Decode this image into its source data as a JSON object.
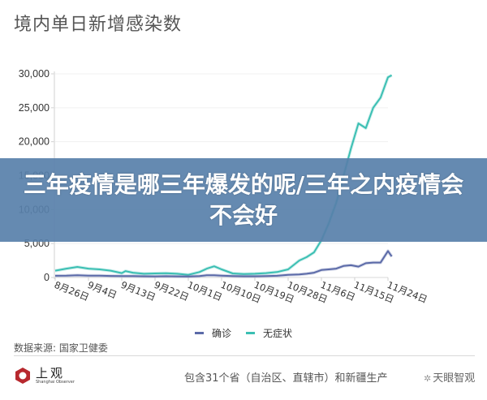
{
  "header": {
    "title": "境内单日新增感染数"
  },
  "overlay": {
    "headline": "三年疫情是哪三年爆发的呢/三年之内疫情会不会好"
  },
  "legend": {
    "items": [
      {
        "label": "确诊",
        "color": "#5b6aa8"
      },
      {
        "label": "无症状",
        "color": "#3bbfb3"
      }
    ]
  },
  "footer": {
    "source": "数据来源: 国家卫健委",
    "logo_cn": "上观",
    "logo_en": "Shanghai Observer",
    "note": "包含31个省（自治区、直辖市）和新疆生产",
    "watermark": "天眼智观"
  },
  "chart_data": {
    "type": "line",
    "title": "境内单日新增感染数",
    "xlabel": "",
    "ylabel": "",
    "ylim": [
      0,
      30000
    ],
    "yticks": [
      0,
      5000,
      10000,
      15000,
      20000,
      25000,
      30000
    ],
    "ytick_labels": [
      "0",
      "5,000",
      "10,000",
      "15,000",
      "20,000",
      "25,000",
      "30,000"
    ],
    "xtick_labels": [
      "8月26日",
      "9月4日",
      "9月13日",
      "9月22日",
      "10月1日",
      "10月10日",
      "10月19日",
      "10月28日",
      "11月6日",
      "11月15日",
      "11月24日"
    ],
    "grid": true,
    "legend_position": "bottom",
    "x": [
      "8/26",
      "8/29",
      "9/1",
      "9/4",
      "9/7",
      "9/10",
      "9/13",
      "9/14",
      "9/16",
      "9/19",
      "9/22",
      "9/25",
      "9/28",
      "10/1",
      "10/4",
      "10/6",
      "10/8",
      "10/10",
      "10/13",
      "10/16",
      "10/19",
      "10/22",
      "10/25",
      "10/28",
      "10/31",
      "11/2",
      "11/4",
      "11/6",
      "11/8",
      "11/10",
      "11/12",
      "11/14",
      "11/16",
      "11/18",
      "11/20",
      "11/22",
      "11/24",
      "11/25"
    ],
    "series": [
      {
        "name": "确诊",
        "color": "#5b6aa8",
        "values": [
          250,
          280,
          330,
          280,
          260,
          230,
          200,
          220,
          200,
          180,
          170,
          190,
          170,
          150,
          200,
          330,
          330,
          280,
          220,
          180,
          180,
          200,
          250,
          400,
          450,
          550,
          700,
          1100,
          1200,
          1300,
          1700,
          1800,
          1600,
          2100,
          2200,
          2200,
          3900,
          3100
        ]
      },
      {
        "name": "无症状",
        "color": "#3bbfb3",
        "values": [
          1000,
          1300,
          1550,
          1300,
          1200,
          1000,
          650,
          950,
          700,
          550,
          600,
          620,
          550,
          400,
          800,
          1300,
          1650,
          1200,
          600,
          500,
          550,
          650,
          800,
          1200,
          2500,
          3000,
          3700,
          5500,
          8000,
          11000,
          15000,
          19000,
          22700,
          22000,
          25000,
          26500,
          29500,
          29800
        ]
      }
    ]
  }
}
